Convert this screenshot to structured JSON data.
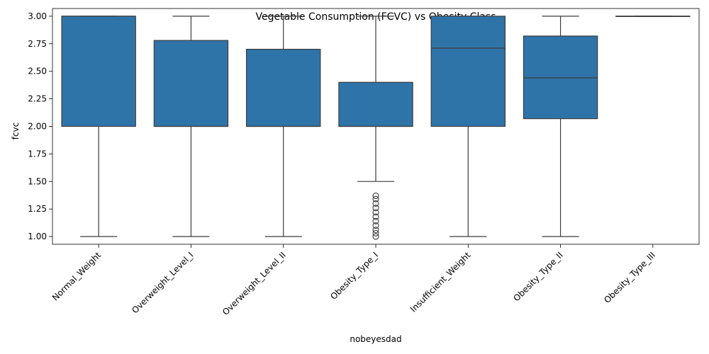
{
  "chart_data": {
    "type": "box",
    "title": "Vegetable Consumption (FCVC) vs Obesity Class",
    "xlabel": "nobeyesdad",
    "ylabel": "fcvc",
    "ylim": [
      0.93,
      3.07
    ],
    "yticks": [
      "1.00",
      "1.25",
      "1.50",
      "1.75",
      "2.00",
      "2.25",
      "2.50",
      "2.75",
      "3.00"
    ],
    "grid": false,
    "box_color": "#2f74a8",
    "line_color": "#3d3d3d",
    "categories": [
      "Normal_Weight",
      "Overweight_Level_I",
      "Overweight_Level_II",
      "Obesity_Type_I",
      "Insufficient_Weight",
      "Obesity_Type_II",
      "Obesity_Type_III"
    ],
    "boxes": [
      {
        "whislo": 1.0,
        "q1": 2.0,
        "med": 3.0,
        "q3": 3.0,
        "whishi": 3.0,
        "fliers": []
      },
      {
        "whislo": 1.0,
        "q1": 2.0,
        "med": 2.0,
        "q3": 2.78,
        "whishi": 3.0,
        "fliers": []
      },
      {
        "whislo": 1.0,
        "q1": 2.0,
        "med": 2.0,
        "q3": 2.7,
        "whishi": 3.0,
        "fliers": []
      },
      {
        "whislo": 1.5,
        "q1": 2.0,
        "med": 2.0,
        "q3": 2.4,
        "whishi": 3.0,
        "fliers": [
          1.0,
          1.03,
          1.06,
          1.1,
          1.14,
          1.18,
          1.22,
          1.26,
          1.3,
          1.34,
          1.37
        ]
      },
      {
        "whislo": 1.0,
        "q1": 2.0,
        "med": 2.71,
        "q3": 3.0,
        "whishi": 3.0,
        "fliers": []
      },
      {
        "whislo": 1.0,
        "q1": 2.07,
        "med": 2.44,
        "q3": 2.82,
        "whishi": 3.0,
        "fliers": []
      },
      {
        "whislo": 3.0,
        "q1": 3.0,
        "med": 3.0,
        "q3": 3.0,
        "whishi": 3.0,
        "fliers": []
      }
    ]
  }
}
